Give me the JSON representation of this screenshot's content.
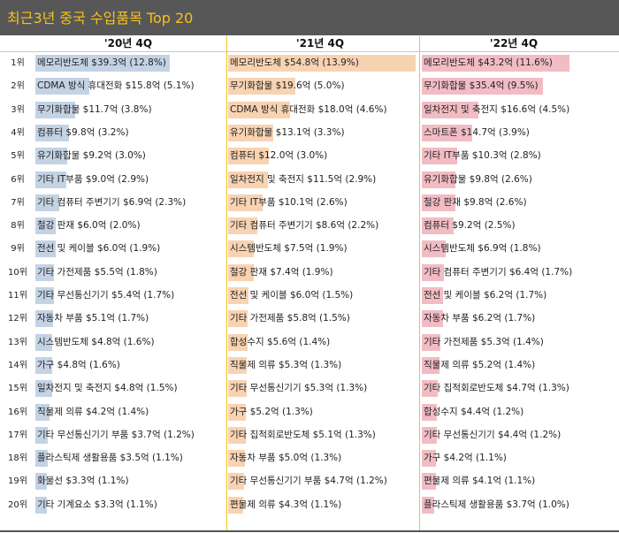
{
  "title": "최근3년 중국 수입품목 Top 20",
  "colors": {
    "header_bg": "#575757",
    "title_color": "#f5c21b",
    "divider": "#f5c21b"
  },
  "chart_data": {
    "type": "bar",
    "title": "최근3년 중국 수입품목 Top 20",
    "orientation": "horizontal",
    "ranks": [
      "1위",
      "2위",
      "3위",
      "4위",
      "5위",
      "6위",
      "7위",
      "8위",
      "9위",
      "10위",
      "11위",
      "12위",
      "13위",
      "14위",
      "15위",
      "16위",
      "17위",
      "18위",
      "19위",
      "20위"
    ],
    "panels": [
      {
        "name": "'20년 4Q",
        "color": "#c3d3e4",
        "items": [
          {
            "item": "메모리반도체",
            "value": 39.3,
            "label": "메모리반도체 $39.3억 (12.8%)"
          },
          {
            "item": "CDMA 방식 휴대전화",
            "value": 15.8,
            "label": "CDMA 방식 휴대전화 $15.8억 (5.1%)"
          },
          {
            "item": "무기화합물",
            "value": 11.7,
            "label": "무기화합물 $11.7억 (3.8%)"
          },
          {
            "item": "컴퓨터",
            "value": 9.8,
            "label": "컴퓨터 $9.8억 (3.2%)"
          },
          {
            "item": "유기화합물",
            "value": 9.2,
            "label": "유기화합물 $9.2억 (3.0%)"
          },
          {
            "item": "기타 IT부품",
            "value": 9.0,
            "label": "기타 IT부품 $9.0억 (2.9%)"
          },
          {
            "item": "기타 컴퓨터 주변기기",
            "value": 6.9,
            "label": "기타 컴퓨터 주변기기 $6.9억 (2.3%)"
          },
          {
            "item": "철강 판재",
            "value": 6.0,
            "label": "철강 판재 $6.0억 (2.0%)"
          },
          {
            "item": "전선 및 케이블",
            "value": 6.0,
            "label": "전선 및 케이블 $6.0억 (1.9%)"
          },
          {
            "item": "기타 가전제품",
            "value": 5.5,
            "label": "기타 가전제품 $5.5억 (1.8%)"
          },
          {
            "item": "기타 무선통신기기",
            "value": 5.4,
            "label": "기타 무선통신기기 $5.4억 (1.7%)"
          },
          {
            "item": "자동차 부품",
            "value": 5.1,
            "label": "자동차 부품 $5.1억 (1.7%)"
          },
          {
            "item": "시스템반도체",
            "value": 4.8,
            "label": "시스템반도체 $4.8억 (1.6%)"
          },
          {
            "item": "가구",
            "value": 4.8,
            "label": "가구 $4.8억 (1.6%)"
          },
          {
            "item": "일차전지 및 축전지",
            "value": 4.8,
            "label": "일차전지 및 축전지 $4.8억 (1.5%)"
          },
          {
            "item": "직물제 의류",
            "value": 4.2,
            "label": "직물제 의류 $4.2억 (1.4%)"
          },
          {
            "item": "기타 무선통신기기 부품",
            "value": 3.7,
            "label": "기타 무선통신기기 부품 $3.7억 (1.2%)"
          },
          {
            "item": "플라스틱제 생활용품",
            "value": 3.5,
            "label": "플라스틱제 생활용품 $3.5억 (1.1%)"
          },
          {
            "item": "화물선",
            "value": 3.3,
            "label": "화물선 $3.3억 (1.1%)"
          },
          {
            "item": "기타 기계요소",
            "value": 3.3,
            "label": "기타 기계요소 $3.3억 (1.1%)"
          }
        ]
      },
      {
        "name": "'21년 4Q",
        "color": "#f8d3b2",
        "items": [
          {
            "item": "메모리반도체",
            "value": 54.8,
            "label": "메모리반도체 $54.8억 (13.9%)"
          },
          {
            "item": "무기화합물",
            "value": 19.6,
            "label": "무기화합물 $19.6억 (5.0%)"
          },
          {
            "item": "CDMA 방식 휴대전화",
            "value": 18.0,
            "label": "CDMA 방식 휴대전화 $18.0억 (4.6%)"
          },
          {
            "item": "유기화합물",
            "value": 13.1,
            "label": "유기화합물 $13.1억 (3.3%)"
          },
          {
            "item": "컴퓨터",
            "value": 12.0,
            "label": "컴퓨터 $12.0억 (3.0%)"
          },
          {
            "item": "일차전지 및 축전지",
            "value": 11.5,
            "label": "일차전지 및 축전지 $11.5억 (2.9%)"
          },
          {
            "item": "기타 IT부품",
            "value": 10.1,
            "label": "기타 IT부품 $10.1억 (2.6%)"
          },
          {
            "item": "기타 컴퓨터 주변기기",
            "value": 8.6,
            "label": "기타 컴퓨터 주변기기 $8.6억 (2.2%)"
          },
          {
            "item": "시스템반도체",
            "value": 7.5,
            "label": "시스템반도체 $7.5억 (1.9%)"
          },
          {
            "item": "철강 판재",
            "value": 7.4,
            "label": "철강 판재 $7.4억 (1.9%)"
          },
          {
            "item": "전선 및 케이블",
            "value": 6.0,
            "label": "전선 및 케이블 $6.0억 (1.5%)"
          },
          {
            "item": "기타 가전제품",
            "value": 5.8,
            "label": "기타 가전제품 $5.8억 (1.5%)"
          },
          {
            "item": "합성수지",
            "value": 5.6,
            "label": "합성수지 $5.6억 (1.4%)"
          },
          {
            "item": "직물제 의류",
            "value": 5.3,
            "label": "직물제 의류 $5.3억 (1.3%)"
          },
          {
            "item": "기타 무선통신기기",
            "value": 5.3,
            "label": "기타 무선통신기기 $5.3억 (1.3%)"
          },
          {
            "item": "가구",
            "value": 5.2,
            "label": "가구 $5.2억 (1.3%)"
          },
          {
            "item": "기타 집적회로반도체",
            "value": 5.1,
            "label": "기타 집적회로반도체 $5.1억 (1.3%)"
          },
          {
            "item": "자동차 부품",
            "value": 5.0,
            "label": "자동차 부품 $5.0억 (1.3%)"
          },
          {
            "item": "기타 무선통신기기 부품",
            "value": 4.7,
            "label": "기타 무선통신기기 부품 $4.7억 (1.2%)"
          },
          {
            "item": "편물제 의류",
            "value": 4.3,
            "label": "편물제 의류 $4.3억 (1.1%)"
          }
        ]
      },
      {
        "name": "'22년 4Q",
        "color": "#f2bcc4",
        "items": [
          {
            "item": "메모리반도체",
            "value": 43.2,
            "label": "메모리반도체 $43.2억 (11.6%)"
          },
          {
            "item": "무기화합물",
            "value": 35.4,
            "label": "무기화합물 $35.4억 (9.5%)"
          },
          {
            "item": "일차전지 및 축전지",
            "value": 16.6,
            "label": "일차전지 및 축전지 $16.6억 (4.5%)"
          },
          {
            "item": "스마트폰",
            "value": 14.7,
            "label": "스마트폰 $14.7억 (3.9%)"
          },
          {
            "item": "기타 IT부품",
            "value": 10.3,
            "label": "기타 IT부품 $10.3억 (2.8%)"
          },
          {
            "item": "유기화합물",
            "value": 9.8,
            "label": "유기화합물 $9.8억 (2.6%)"
          },
          {
            "item": "철강 판재",
            "value": 9.8,
            "label": "철강 판재 $9.8억 (2.6%)"
          },
          {
            "item": "컴퓨터",
            "value": 9.2,
            "label": "컴퓨터 $9.2억 (2.5%)"
          },
          {
            "item": "시스템반도체",
            "value": 6.9,
            "label": "시스템반도체 $6.9억 (1.8%)"
          },
          {
            "item": "기타 컴퓨터 주변기기",
            "value": 6.4,
            "label": "기타 컴퓨터 주변기기 $6.4억 (1.7%)"
          },
          {
            "item": "전선 및 케이블",
            "value": 6.2,
            "label": "전선 및 케이블 $6.2억 (1.7%)"
          },
          {
            "item": "자동차 부품",
            "value": 6.2,
            "label": "자동차 부품 $6.2억 (1.7%)"
          },
          {
            "item": "기타 가전제품",
            "value": 5.3,
            "label": "기타 가전제품 $5.3억 (1.4%)"
          },
          {
            "item": "직물제 의류",
            "value": 5.2,
            "label": "직물제 의류 $5.2억 (1.4%)"
          },
          {
            "item": "기타 집적회로반도체",
            "value": 4.7,
            "label": "기타 집적회로반도체 $4.7억 (1.3%)"
          },
          {
            "item": "합성수지",
            "value": 4.4,
            "label": "합성수지 $4.4억 (1.2%)"
          },
          {
            "item": "기타 무선통신기기",
            "value": 4.4,
            "label": "기타 무선통신기기 $4.4억 (1.2%)"
          },
          {
            "item": "가구",
            "value": 4.2,
            "label": "가구 $4.2억 (1.1%)"
          },
          {
            "item": "편물제 의류",
            "value": 4.1,
            "label": "편물제 의류 $4.1억 (1.1%)"
          },
          {
            "item": "플라스틱제 생활용품",
            "value": 3.7,
            "label": "플라스틱제 생활용품 $3.7억 (1.0%)"
          }
        ]
      }
    ]
  }
}
